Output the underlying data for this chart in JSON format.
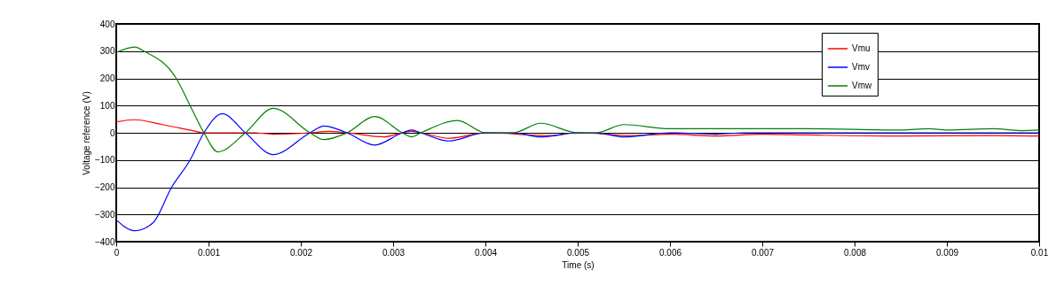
{
  "chart_data": {
    "type": "line",
    "xlabel": "Time (s)",
    "ylabel": "Voltage reference (V)",
    "xlim": [
      0,
      0.01
    ],
    "xticks": [
      0,
      0.001,
      0.002,
      0.003,
      0.004,
      0.005,
      0.006,
      0.007,
      0.008,
      0.009,
      0.01
    ],
    "ylim": [
      -400,
      400
    ],
    "yticks": [
      -400,
      -300,
      -200,
      -100,
      0,
      100,
      200,
      300,
      400
    ],
    "grid": "y",
    "legend": "top right",
    "marker": "none",
    "line_style": "solid",
    "series": [
      {
        "name": "Vmu",
        "color": "#ff0000",
        "x": [
          0,
          0.0002,
          0.0005,
          0.0008,
          0.00095,
          0.0015,
          0.0017,
          0.0021,
          0.0023,
          0.0025,
          0.0029,
          0.0031,
          0.0032,
          0.0033,
          0.0036,
          0.004,
          0.0047,
          0.005,
          0.0056,
          0.006,
          0.0065,
          0.007,
          0.0075,
          0.0085,
          0.0095,
          0.01
        ],
        "values": [
          40,
          48,
          30,
          10,
          0,
          0,
          -5,
          0,
          5,
          0,
          -15,
          0,
          5,
          0,
          -20,
          0,
          -10,
          0,
          -10,
          -5,
          -12,
          -5,
          -8,
          -12,
          -10,
          -12
        ]
      },
      {
        "name": "Vmv",
        "color": "#0000ff",
        "x": [
          0,
          0.0002,
          0.0004,
          0.0006,
          0.0008,
          0.00095,
          0.00115,
          0.0014,
          0.0017,
          0.0021,
          0.00225,
          0.0025,
          0.0028,
          0.0031,
          0.0032,
          0.0033,
          0.0036,
          0.004,
          0.0043,
          0.0046,
          0.005,
          0.0052,
          0.0055,
          0.006,
          0.0065,
          0.0068,
          0.01
        ],
        "values": [
          -320,
          -360,
          -330,
          -200,
          -100,
          0,
          70,
          0,
          -80,
          0,
          25,
          0,
          -45,
          0,
          10,
          0,
          -30,
          0,
          0,
          -15,
          0,
          0,
          -15,
          0,
          -5,
          0,
          0
        ]
      },
      {
        "name": "Vmw",
        "color": "#008000",
        "x": [
          0,
          0.0002,
          0.0003,
          0.00065,
          0.0008,
          0.00095,
          0.0011,
          0.0014,
          0.0017,
          0.0021,
          0.00225,
          0.0025,
          0.0028,
          0.0031,
          0.0032,
          0.0033,
          0.0037,
          0.004,
          0.0043,
          0.0046,
          0.005,
          0.0052,
          0.0055,
          0.006,
          0.007,
          0.0075,
          0.0085,
          0.0088,
          0.009,
          0.0095,
          0.0098,
          0.01
        ],
        "values": [
          295,
          315,
          300,
          200,
          100,
          0,
          -70,
          0,
          90,
          0,
          -25,
          0,
          60,
          0,
          -15,
          0,
          45,
          0,
          0,
          35,
          0,
          0,
          30,
          15,
          15,
          15,
          10,
          15,
          10,
          15,
          8,
          10
        ]
      }
    ]
  }
}
